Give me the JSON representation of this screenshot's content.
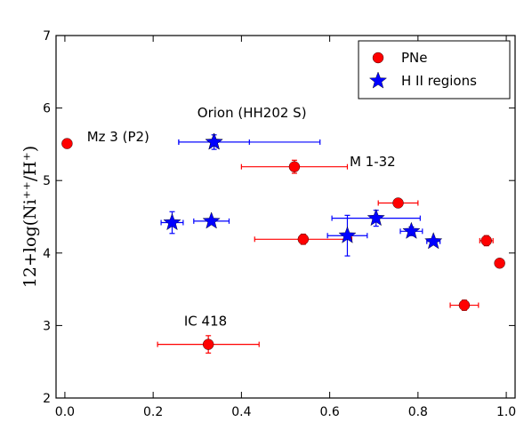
{
  "chart_data": {
    "type": "scatter",
    "xlim": [
      -0.02,
      1.02
    ],
    "ylim": [
      2,
      7
    ],
    "xticks": [
      "0.0",
      "0.2",
      "0.4",
      "0.6",
      "0.8",
      "1.0"
    ],
    "yticks": [
      "2",
      "3",
      "4",
      "5",
      "6",
      "7"
    ],
    "ylabel": "12+log(Ni⁺⁺/H⁺)",
    "xlabel": "",
    "legend": {
      "position": "top-right",
      "entries": [
        "PNe",
        "H II regions"
      ]
    },
    "series": [
      {
        "name": "PNe",
        "marker": "circle",
        "color": "#ff0000",
        "points": [
          {
            "x": 0.005,
            "y": 5.51,
            "xerr": 0.0,
            "yerr": 0.06
          },
          {
            "x": 0.52,
            "y": 5.19,
            "xerr": 0.12,
            "yerr": 0.09
          },
          {
            "x": 0.755,
            "y": 4.69,
            "xerr": 0.045,
            "yerr": 0.0
          },
          {
            "x": 0.54,
            "y": 4.19,
            "xerr": 0.11,
            "yerr": 0.07
          },
          {
            "x": 0.955,
            "y": 4.17,
            "xerr": 0.015,
            "yerr": 0.07
          },
          {
            "x": 0.985,
            "y": 3.86,
            "xerr": 0.0,
            "yerr": 0.0
          },
          {
            "x": 0.905,
            "y": 3.28,
            "xerr": 0.032,
            "yerr": 0.07
          },
          {
            "x": 0.325,
            "y": 2.74,
            "xerr": 0.115,
            "yerr": 0.12
          }
        ]
      },
      {
        "name": "H II regions",
        "marker": "star",
        "color": "#0000ff",
        "points": [
          {
            "x": 0.338,
            "y": 5.53,
            "xerr": 0.08,
            "yerr": 0.1
          },
          {
            "x": 0.338,
            "y": 5.53,
            "xerr": 0.24,
            "yerr": 0.0,
            "xerr_minus": 0.08
          },
          {
            "x": 0.243,
            "y": 4.42,
            "xerr": 0.025,
            "yerr": 0.15
          },
          {
            "x": 0.332,
            "y": 4.44,
            "xerr": 0.04,
            "yerr": 0.0
          },
          {
            "x": 0.705,
            "y": 4.48,
            "xerr": 0.1,
            "yerr": 0.11
          },
          {
            "x": 0.64,
            "y": 4.24,
            "xerr": 0.045,
            "yerr": 0.28
          },
          {
            "x": 0.785,
            "y": 4.3,
            "xerr": 0.025,
            "yerr": 0.06
          },
          {
            "x": 0.835,
            "y": 4.16,
            "xerr": 0.015,
            "yerr": 0.03
          }
        ]
      }
    ],
    "annotations": [
      {
        "text": "Orion (HH202 S)",
        "x": 0.3,
        "y": 5.87
      },
      {
        "text": "Mz 3 (P2)",
        "x": 0.05,
        "y": 5.54
      },
      {
        "text": "M 1-32",
        "x": 0.645,
        "y": 5.2
      },
      {
        "text": "IC 418",
        "x": 0.27,
        "y": 3.0
      }
    ]
  }
}
